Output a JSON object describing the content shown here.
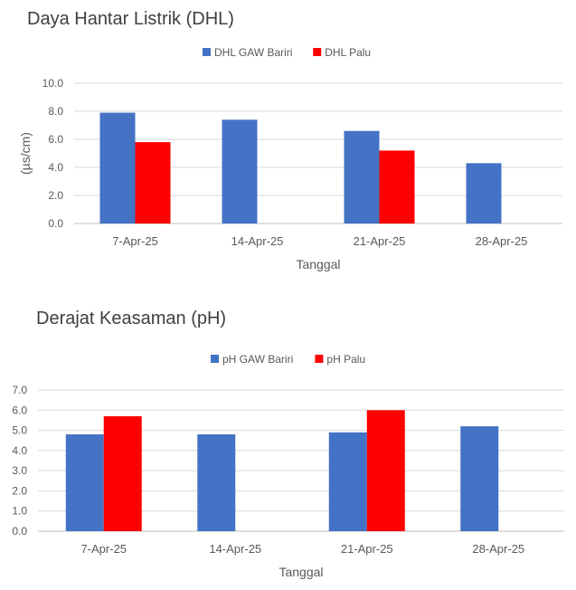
{
  "chart_data": [
    {
      "type": "bar",
      "title": "Daya Hantar Listrik (DHL)",
      "xlabel": "Tanggal",
      "ylabel": "(µs/cm)",
      "categories": [
        "7-Apr-25",
        "14-Apr-25",
        "21-Apr-25",
        "28-Apr-25"
      ],
      "series": [
        {
          "name": "DHL GAW Bariri",
          "color": "#4472C4",
          "values": [
            7.9,
            7.4,
            6.6,
            4.3
          ]
        },
        {
          "name": "DHL Palu",
          "color": "#FF0000",
          "values": [
            5.8,
            null,
            5.2,
            null
          ]
        }
      ],
      "ylim": [
        0,
        10
      ],
      "yticks": [
        "0.0",
        "2.0",
        "4.0",
        "6.0",
        "8.0",
        "10.0"
      ],
      "grid": true,
      "legend": "top"
    },
    {
      "type": "bar",
      "title": "Derajat Keasaman (pH)",
      "xlabel": "Tanggal",
      "ylabel": "",
      "categories": [
        "7-Apr-25",
        "14-Apr-25",
        "21-Apr-25",
        "28-Apr-25"
      ],
      "series": [
        {
          "name": "pH GAW Bariri",
          "color": "#4472C4",
          "values": [
            4.8,
            4.8,
            4.9,
            5.2
          ]
        },
        {
          "name": "pH Palu",
          "color": "#FF0000",
          "values": [
            5.7,
            null,
            6.0,
            null
          ]
        }
      ],
      "ylim": [
        0,
        7
      ],
      "yticks": [
        "0.0",
        "1.0",
        "2.0",
        "3.0",
        "4.0",
        "5.0",
        "6.0",
        "7.0"
      ],
      "grid": true,
      "legend": "top"
    }
  ]
}
